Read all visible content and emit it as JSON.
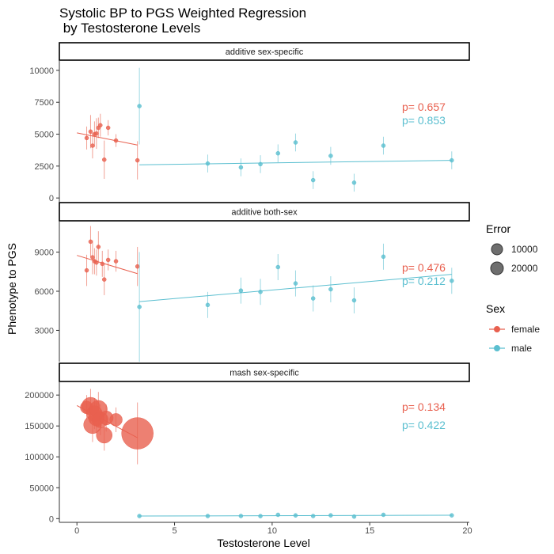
{
  "chart_data": {
    "type": "scatter",
    "title_line1": "Systolic BP to PGS Weighted Regression",
    "title_line2": " by Testosterone Levels",
    "xlabel": "Testosterone Level",
    "ylabel": "Phenotype to PGS",
    "xlim": [
      -0.9,
      20.1
    ],
    "xticks": [
      0,
      5,
      10,
      15,
      20
    ],
    "colors": {
      "female": "#e8604f",
      "male": "#5bbfd0"
    },
    "legend": {
      "error_title": "Error",
      "error_entries": [
        {
          "label": "10000",
          "size": 10000
        },
        {
          "label": "20000",
          "size": 20000
        }
      ],
      "sex_title": "Sex",
      "sex_entries": [
        {
          "label": "female",
          "key": "female"
        },
        {
          "label": "male",
          "key": "male"
        }
      ]
    },
    "panels": [
      {
        "strip": "additive sex-specific",
        "ylim": [
          -300,
          10800
        ],
        "yticks": [
          0,
          2500,
          5000,
          7500,
          10000
        ],
        "pvalues": {
          "female": "p= 0.657",
          "male": "p= 0.853"
        },
        "female": {
          "points": [
            {
              "x": 0.5,
              "y": 4700,
              "err": 900
            },
            {
              "x": 0.7,
              "y": 5200,
              "err": 1300
            },
            {
              "x": 0.8,
              "y": 4100,
              "err": 1000
            },
            {
              "x": 0.9,
              "y": 5000,
              "err": 1000
            },
            {
              "x": 1.0,
              "y": 5050,
              "err": 1200
            },
            {
              "x": 1.1,
              "y": 5500,
              "err": 800
            },
            {
              "x": 1.2,
              "y": 5700,
              "err": 900
            },
            {
              "x": 1.4,
              "y": 3000,
              "err": 1500
            },
            {
              "x": 1.6,
              "y": 5500,
              "err": 600
            },
            {
              "x": 2.0,
              "y": 4500,
              "err": 500
            },
            {
              "x": 3.1,
              "y": 2950,
              "err": 1500
            }
          ],
          "fit": [
            [
              0.0,
              5100
            ],
            [
              3.1,
              4150
            ]
          ]
        },
        "male": {
          "points": [
            {
              "x": 3.2,
              "y": 7200,
              "err": 3000
            },
            {
              "x": 6.7,
              "y": 2700,
              "err": 700
            },
            {
              "x": 8.4,
              "y": 2400,
              "err": 700
            },
            {
              "x": 9.4,
              "y": 2650,
              "err": 700
            },
            {
              "x": 10.3,
              "y": 3500,
              "err": 700
            },
            {
              "x": 11.2,
              "y": 4350,
              "err": 700
            },
            {
              "x": 12.1,
              "y": 1400,
              "err": 700
            },
            {
              "x": 13.0,
              "y": 3300,
              "err": 700
            },
            {
              "x": 14.2,
              "y": 1200,
              "err": 700
            },
            {
              "x": 15.7,
              "y": 4100,
              "err": 700
            },
            {
              "x": 19.2,
              "y": 2950,
              "err": 700
            }
          ],
          "fit": [
            [
              3.2,
              2600
            ],
            [
              19.2,
              2950
            ]
          ]
        }
      },
      {
        "strip": "additive both-sex",
        "ylim": [
          600,
          11400
        ],
        "yticks": [
          3000,
          6000,
          9000
        ],
        "pvalues": {
          "female": "p= 0.476",
          "male": "p= 0.212"
        },
        "female": {
          "points": [
            {
              "x": 0.5,
              "y": 7600,
              "err": 1200
            },
            {
              "x": 0.7,
              "y": 9800,
              "err": 1200
            },
            {
              "x": 0.8,
              "y": 8600,
              "err": 1300
            },
            {
              "x": 0.9,
              "y": 8300,
              "err": 1000
            },
            {
              "x": 1.0,
              "y": 8200,
              "err": 1000
            },
            {
              "x": 1.1,
              "y": 9400,
              "err": 1200
            },
            {
              "x": 1.3,
              "y": 8100,
              "err": 1000
            },
            {
              "x": 1.4,
              "y": 6900,
              "err": 1200
            },
            {
              "x": 1.6,
              "y": 8400,
              "err": 800
            },
            {
              "x": 2.0,
              "y": 8300,
              "err": 800
            },
            {
              "x": 3.1,
              "y": 7900,
              "err": 1500
            }
          ],
          "fit": [
            [
              0.0,
              8750
            ],
            [
              3.1,
              7350
            ]
          ]
        },
        "male": {
          "points": [
            {
              "x": 3.2,
              "y": 4800,
              "err": 4200
            },
            {
              "x": 6.7,
              "y": 4950,
              "err": 1000
            },
            {
              "x": 8.4,
              "y": 6050,
              "err": 1000
            },
            {
              "x": 9.4,
              "y": 5950,
              "err": 1000
            },
            {
              "x": 10.3,
              "y": 7850,
              "err": 1000
            },
            {
              "x": 11.2,
              "y": 6600,
              "err": 1000
            },
            {
              "x": 12.1,
              "y": 5450,
              "err": 1000
            },
            {
              "x": 13.0,
              "y": 6150,
              "err": 1000
            },
            {
              "x": 14.2,
              "y": 5300,
              "err": 1000
            },
            {
              "x": 15.7,
              "y": 8650,
              "err": 1000
            },
            {
              "x": 19.2,
              "y": 6800,
              "err": 1000
            }
          ],
          "fit": [
            [
              3.2,
              5200
            ],
            [
              19.2,
              7300
            ]
          ]
        }
      },
      {
        "strip": "mash sex-specific",
        "ylim": [
          -6000,
          222000
        ],
        "yticks": [
          0,
          50000,
          100000,
          150000,
          200000
        ],
        "pvalues": {
          "female": "p= 0.134",
          "male": "p= 0.422"
        },
        "female": {
          "points": [
            {
              "x": 0.5,
              "y": 180000,
              "err": 20000
            },
            {
              "x": 0.7,
              "y": 182000,
              "err": 28000
            },
            {
              "x": 0.8,
              "y": 152000,
              "err": 28000
            },
            {
              "x": 0.9,
              "y": 170000,
              "err": 25000
            },
            {
              "x": 1.0,
              "y": 163000,
              "err": 25000
            },
            {
              "x": 1.1,
              "y": 177000,
              "err": 28000
            },
            {
              "x": 1.2,
              "y": 160000,
              "err": 25000
            },
            {
              "x": 1.4,
              "y": 135000,
              "err": 25000
            },
            {
              "x": 1.5,
              "y": 163000,
              "err": 22000
            },
            {
              "x": 2.0,
              "y": 160000,
              "err": 20000
            },
            {
              "x": 3.1,
              "y": 138000,
              "err": 50000
            }
          ],
          "fit": [
            [
              0.0,
              183000
            ],
            [
              3.1,
              131000
            ]
          ]
        },
        "male": {
          "points": [
            {
              "x": 3.2,
              "y": 4200,
              "err": 1500
            },
            {
              "x": 6.7,
              "y": 4200,
              "err": 1000
            },
            {
              "x": 8.4,
              "y": 4300,
              "err": 1000
            },
            {
              "x": 9.4,
              "y": 4100,
              "err": 1000
            },
            {
              "x": 10.3,
              "y": 6200,
              "err": 1000
            },
            {
              "x": 11.2,
              "y": 5200,
              "err": 1000
            },
            {
              "x": 12.1,
              "y": 4200,
              "err": 1000
            },
            {
              "x": 13.0,
              "y": 5300,
              "err": 1000
            },
            {
              "x": 14.2,
              "y": 3300,
              "err": 1000
            },
            {
              "x": 15.7,
              "y": 6200,
              "err": 1000
            },
            {
              "x": 19.2,
              "y": 5300,
              "err": 1000
            }
          ],
          "fit": [
            [
              3.2,
              4200
            ],
            [
              19.2,
              5500
            ]
          ]
        }
      }
    ]
  }
}
